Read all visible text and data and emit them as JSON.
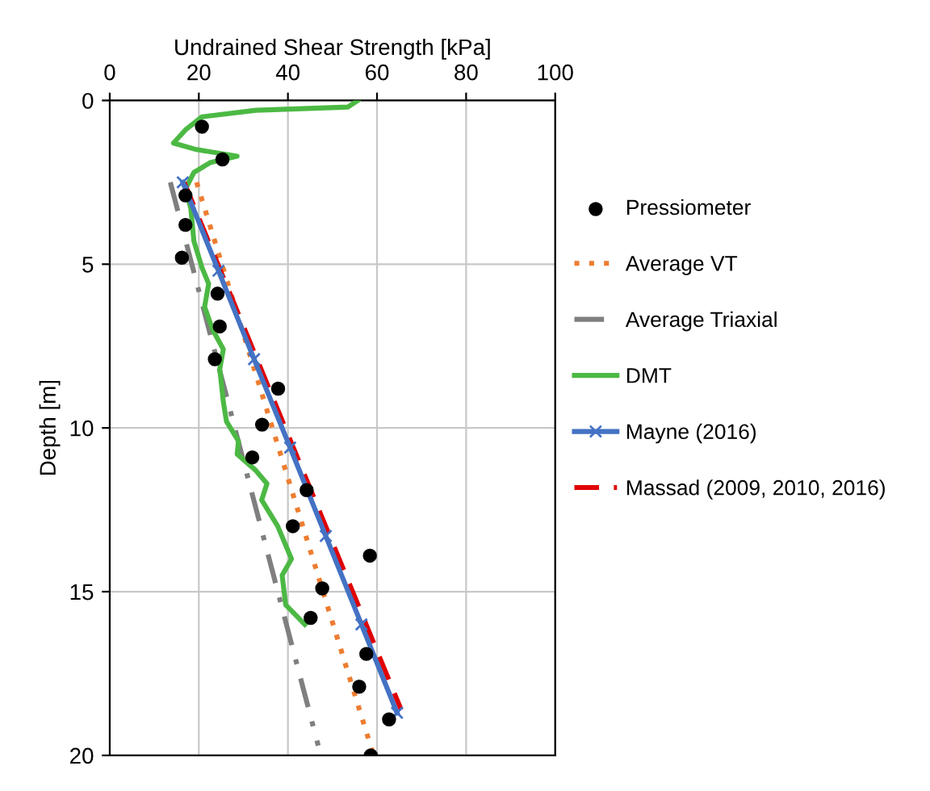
{
  "chart_data": {
    "type": "line",
    "xlabel": "Undrained Shear Strength [kPa]",
    "ylabel": "Depth [m]",
    "xlim": [
      0,
      100
    ],
    "xticks": [
      0,
      20,
      40,
      60,
      80,
      100
    ],
    "ylim": [
      20,
      0
    ],
    "yticks": [
      0,
      5,
      10,
      15,
      20
    ],
    "grid": true,
    "legend": "right",
    "series": [
      {
        "name": "Pressiometer",
        "type": "scatter",
        "color": "#000000",
        "marker": "circle",
        "x": [
          20.7,
          25.3,
          17.0,
          17.0,
          16.2,
          24.2,
          24.7,
          23.6,
          37.8,
          34.2,
          32.0,
          44.2,
          41.1,
          58.4,
          47.7,
          45.1,
          57.6,
          56.0,
          62.7,
          58.6
        ],
        "values": [
          0.8,
          1.8,
          2.9,
          3.8,
          4.8,
          5.9,
          6.9,
          7.9,
          8.8,
          9.9,
          10.9,
          11.9,
          13.0,
          13.9,
          14.9,
          15.8,
          16.9,
          17.9,
          18.9,
          20.0
        ]
      },
      {
        "name": "Average VT",
        "color": "#ed7d31",
        "line_style": "dotted",
        "marker": "none",
        "x": [
          19.5,
          59.0
        ],
        "values": [
          2.5,
          19.9
        ]
      },
      {
        "name": "Average Triaxial",
        "color": "#7f7f7f",
        "line_style": "dashdot",
        "marker": "none",
        "x": [
          13.6,
          46.8
        ],
        "values": [
          2.5,
          19.7
        ]
      },
      {
        "name": "DMT",
        "color": "#4cb944",
        "line_style": "solid",
        "marker": "none",
        "x": [
          55.7,
          53.5,
          32.8,
          20.7,
          17.0,
          14.3,
          19.5,
          28.6,
          22.5,
          18.9,
          17.0,
          18.2,
          18.9,
          20.7,
          22.2,
          21.3,
          23.1,
          25.5,
          24.7,
          25.5,
          26.2,
          28.9,
          28.6,
          32.8,
          35.3,
          34.1,
          37.7,
          40.8,
          38.7,
          39.5,
          43.8
        ],
        "values": [
          0.0,
          0.2,
          0.3,
          0.5,
          0.9,
          1.3,
          1.5,
          1.7,
          1.9,
          2.2,
          2.7,
          3.3,
          4.3,
          5.1,
          5.6,
          6.3,
          7.0,
          7.6,
          8.2,
          9.2,
          9.8,
          10.4,
          10.8,
          11.3,
          11.7,
          12.2,
          13.0,
          14.0,
          14.5,
          15.4,
          16.0
        ]
      },
      {
        "name": "Mayne (2016)",
        "color": "#4472c4",
        "line_style": "solid",
        "marker": "cross",
        "x": [
          16.4,
          24.4,
          32.4,
          40.5,
          48.5,
          56.5,
          64.5
        ],
        "values": [
          2.5,
          5.2,
          7.9,
          10.6,
          13.3,
          16.0,
          18.7
        ]
      },
      {
        "name": "Massad (2009, 2010, 2016)",
        "color": "#e00000",
        "line_style": "dashed",
        "marker": "none",
        "x": [
          16.7,
          65.4
        ],
        "values": [
          2.5,
          18.6
        ]
      }
    ]
  }
}
